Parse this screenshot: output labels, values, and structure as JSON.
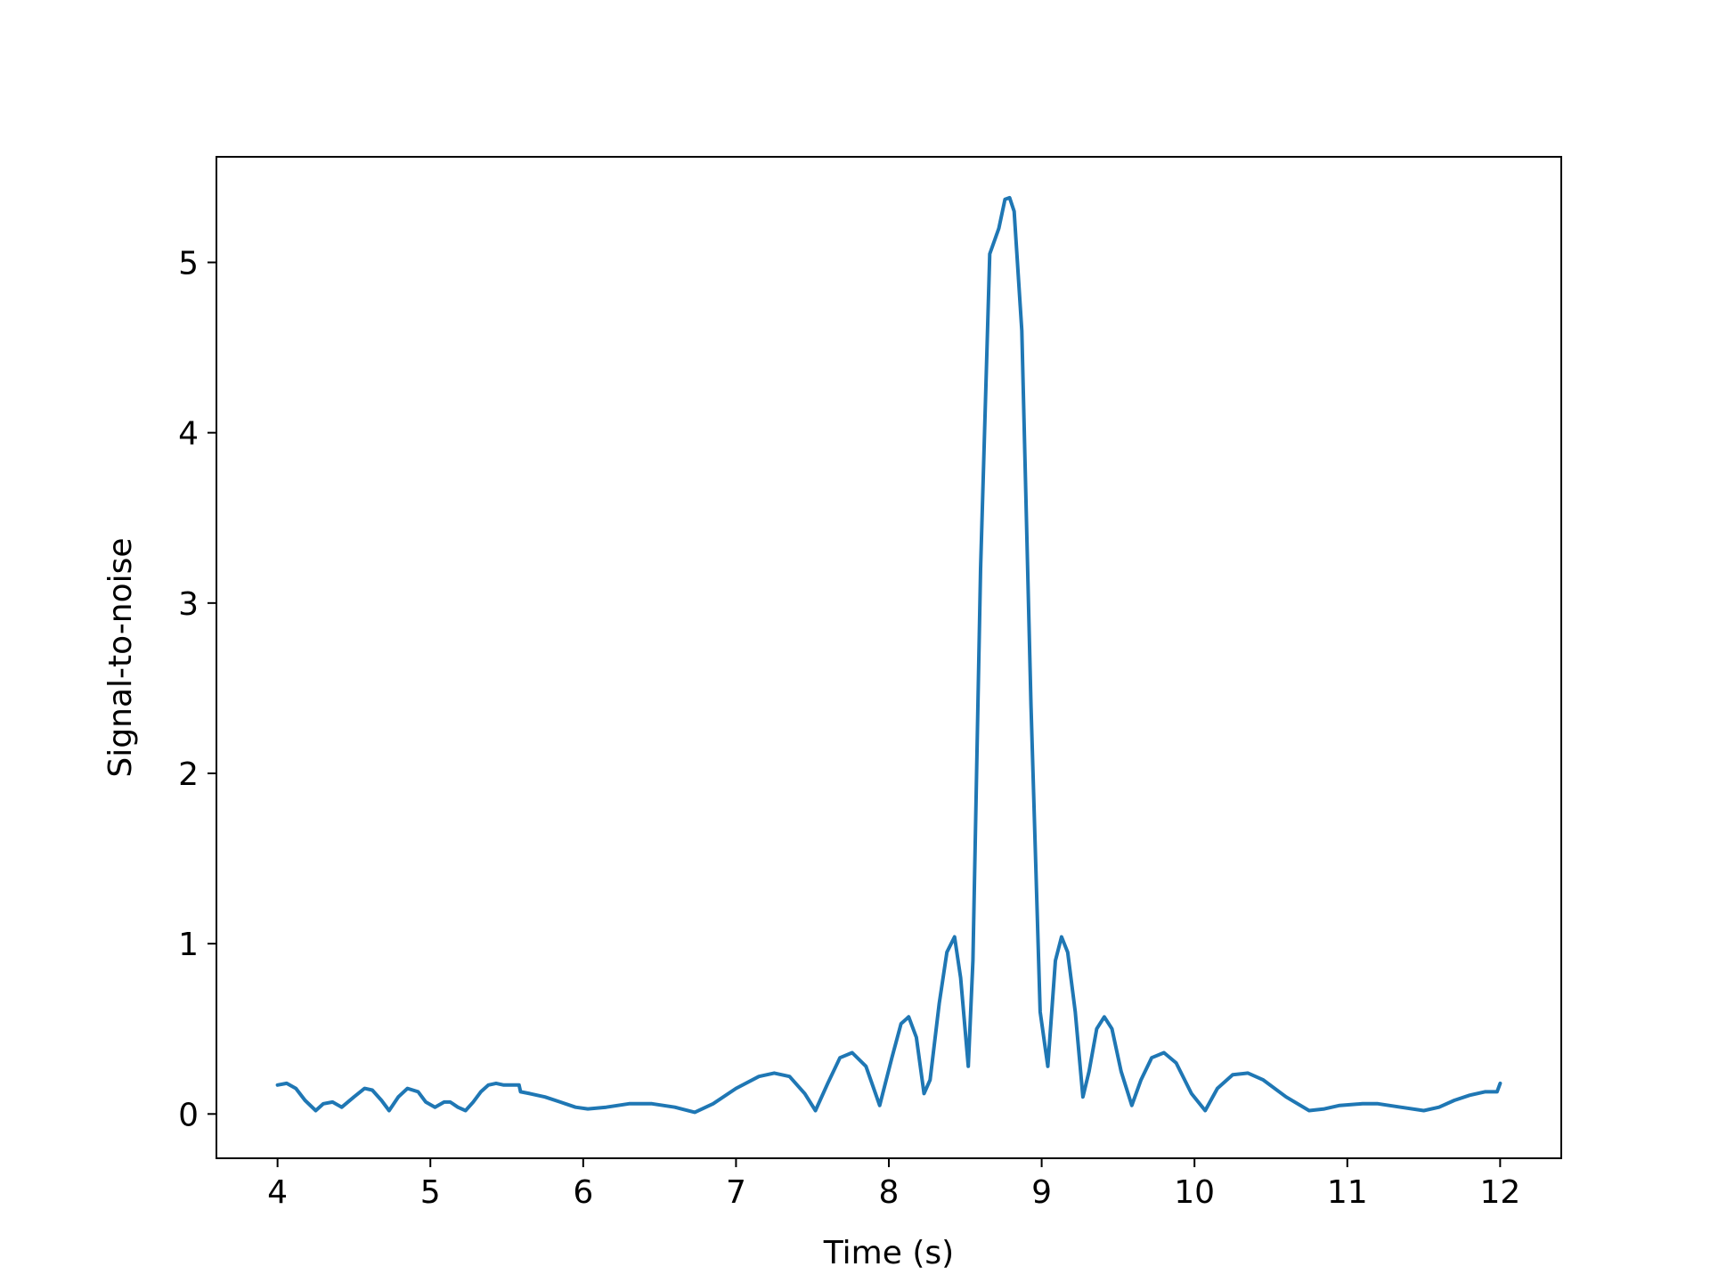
{
  "chart_data": {
    "type": "line",
    "title": "",
    "xlabel": "Time (s)",
    "ylabel": "Signal-to-noise",
    "xlim": [
      3.6,
      12.4
    ],
    "ylim": [
      -0.26,
      5.62
    ],
    "xticks": [
      4,
      5,
      6,
      7,
      8,
      9,
      10,
      11,
      12
    ],
    "xtick_labels": [
      "4",
      "5",
      "6",
      "7",
      "8",
      "9",
      "10",
      "11",
      "12"
    ],
    "yticks": [
      0,
      1,
      2,
      3,
      4,
      5
    ],
    "ytick_labels": [
      "0",
      "1",
      "2",
      "3",
      "4",
      "5"
    ],
    "grid": false,
    "legend": "none",
    "series": [
      {
        "color": "#1f77b4",
        "x": [
          4.0,
          4.06,
          4.12,
          4.18,
          4.25,
          4.3,
          4.36,
          4.42,
          4.5,
          4.57,
          4.62,
          4.68,
          4.73,
          4.79,
          4.85,
          4.92,
          4.97,
          5.03,
          5.09,
          5.13,
          5.18,
          5.23,
          5.28,
          5.33,
          5.38,
          5.43,
          5.48,
          5.53,
          5.58,
          5.59,
          5.65,
          5.75,
          5.85,
          5.95,
          6.03,
          6.15,
          6.3,
          6.45,
          6.6,
          6.73,
          6.85,
          7.0,
          7.15,
          7.25,
          7.35,
          7.45,
          7.52,
          7.6,
          7.68,
          7.76,
          7.85,
          7.94,
          8.02,
          8.08,
          8.13,
          8.18,
          8.23,
          8.27,
          8.33,
          8.38,
          8.43,
          8.47,
          8.52,
          8.55,
          8.6,
          8.66,
          8.72,
          8.76,
          8.79,
          8.82,
          8.87,
          8.93,
          8.99,
          9.04,
          9.09,
          9.13,
          9.17,
          9.22,
          9.27,
          9.31,
          9.36,
          9.41,
          9.46,
          9.52,
          9.59,
          9.65,
          9.72,
          9.8,
          9.88,
          9.98,
          10.07,
          10.15,
          10.25,
          10.35,
          10.45,
          10.6,
          10.75,
          10.85,
          10.95,
          11.1,
          11.2,
          11.35,
          11.5,
          11.6,
          11.7,
          11.8,
          11.9,
          11.98,
          12.0
        ],
        "y": [
          0.17,
          0.18,
          0.15,
          0.08,
          0.02,
          0.06,
          0.07,
          0.04,
          0.1,
          0.15,
          0.14,
          0.08,
          0.02,
          0.1,
          0.15,
          0.13,
          0.07,
          0.04,
          0.07,
          0.07,
          0.04,
          0.02,
          0.07,
          0.13,
          0.17,
          0.18,
          0.17,
          0.17,
          0.17,
          0.13,
          0.12,
          0.1,
          0.07,
          0.04,
          0.03,
          0.04,
          0.06,
          0.06,
          0.04,
          0.01,
          0.06,
          0.15,
          0.22,
          0.24,
          0.22,
          0.12,
          0.02,
          0.18,
          0.33,
          0.36,
          0.28,
          0.05,
          0.33,
          0.53,
          0.57,
          0.45,
          0.12,
          0.2,
          0.65,
          0.95,
          1.04,
          0.8,
          0.28,
          0.9,
          3.2,
          5.05,
          5.2,
          5.37,
          5.38,
          5.3,
          4.6,
          2.4,
          0.6,
          0.28,
          0.9,
          1.04,
          0.95,
          0.6,
          0.1,
          0.25,
          0.5,
          0.57,
          0.5,
          0.25,
          0.05,
          0.2,
          0.33,
          0.36,
          0.3,
          0.12,
          0.02,
          0.15,
          0.23,
          0.24,
          0.2,
          0.1,
          0.02,
          0.03,
          0.05,
          0.06,
          0.06,
          0.04,
          0.02,
          0.04,
          0.08,
          0.11,
          0.13,
          0.13,
          0.18
        ]
      }
    ]
  }
}
